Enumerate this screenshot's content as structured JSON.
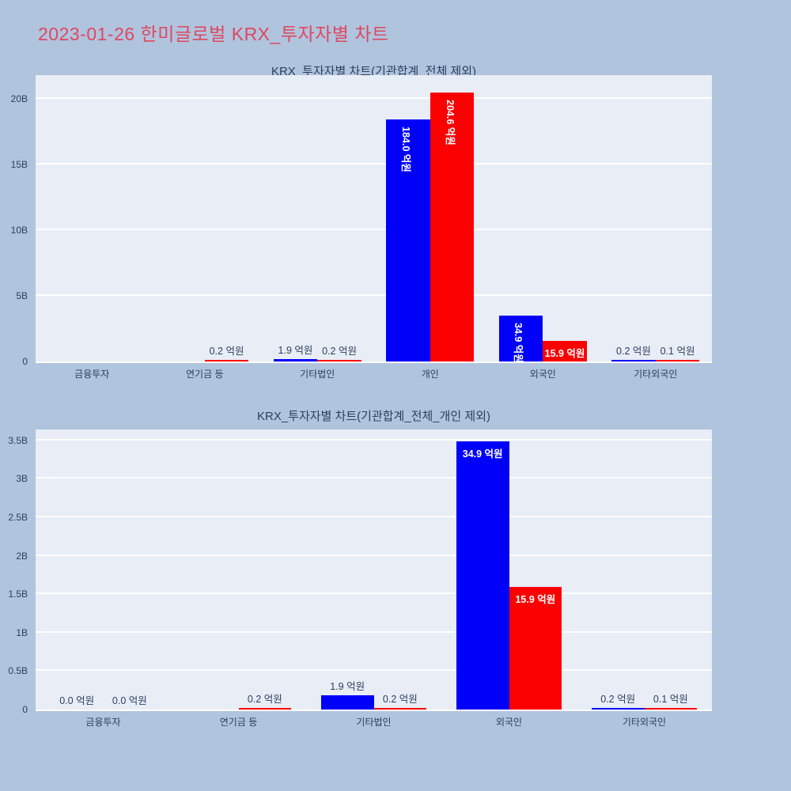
{
  "page": {
    "title": "2023-01-26 한미글로벌 KRX_투자자별 차트",
    "title_color": "#de4760",
    "background_color": "#b0c4de",
    "plot_background_color": "#e9edf6",
    "grid_color": "#ffffff",
    "text_color": "#2a3f5f"
  },
  "chart_data": [
    {
      "type": "bar",
      "title": "KRX_투자자별 차트(기관합계_전체 제외)",
      "unit": "억원",
      "categories": [
        "금융투자",
        "연기금 등",
        "기타법인",
        "개인",
        "외국인",
        "기타외국인"
      ],
      "ytick_labels": [
        "0",
        "5B",
        "10B",
        "15B",
        "20B"
      ],
      "ytick_values_B": [
        0,
        5,
        10,
        15,
        20
      ],
      "axis_max_B": 21.8,
      "grid": "on",
      "legend": "none",
      "series": [
        {
          "name": "blue",
          "color": "#0000fa",
          "values_eokwon": [
            0,
            0,
            1.9,
            184.0,
            34.9,
            0.2
          ],
          "labels": [
            "",
            "",
            "1.9 억원",
            "184.0 억원",
            "34.9 억원",
            "0.2 억원"
          ],
          "label_pos": [
            "none",
            "none",
            "out",
            "in-rot",
            "in-rot",
            "out"
          ]
        },
        {
          "name": "red",
          "color": "#fa0000",
          "values_eokwon": [
            0,
            0.2,
            0.2,
            204.6,
            15.9,
            0.1
          ],
          "labels": [
            "",
            "0.2 억원",
            "0.2 억원",
            "204.6 억원",
            "15.9 억원",
            "0.1 억원"
          ],
          "label_pos": [
            "none",
            "out",
            "out",
            "in-rot",
            "in-h",
            "out"
          ]
        }
      ]
    },
    {
      "type": "bar",
      "title": "KRX_투자자별 차트(기관합계_전체_개인 제외)",
      "unit": "억원",
      "categories": [
        "금융투자",
        "연기금 등",
        "기타법인",
        "외국인",
        "기타외국인"
      ],
      "ytick_labels": [
        "0",
        "0.5B",
        "1B",
        "1.5B",
        "2B",
        "2.5B",
        "3B",
        "3.5B"
      ],
      "ytick_values_B": [
        0,
        0.5,
        1,
        1.5,
        2,
        2.5,
        3,
        3.5
      ],
      "axis_max_B": 3.64,
      "grid": "on",
      "legend": "none",
      "series": [
        {
          "name": "blue",
          "color": "#0000fa",
          "values_eokwon": [
            0.0,
            0,
            1.9,
            34.9,
            0.2
          ],
          "labels": [
            "0.0 억원",
            "",
            "1.9 억원",
            "34.9 억원",
            "0.2 억원"
          ],
          "label_pos": [
            "out",
            "none",
            "out",
            "in-h",
            "out"
          ]
        },
        {
          "name": "red",
          "color": "#fa0000",
          "values_eokwon": [
            0.0,
            0.2,
            0.2,
            15.9,
            0.1
          ],
          "labels": [
            "0.0 억원",
            "0.2 억원",
            "0.2 억원",
            "15.9 억원",
            "0.1 억원"
          ],
          "label_pos": [
            "out",
            "out",
            "out",
            "in-h",
            "out"
          ]
        }
      ]
    }
  ]
}
